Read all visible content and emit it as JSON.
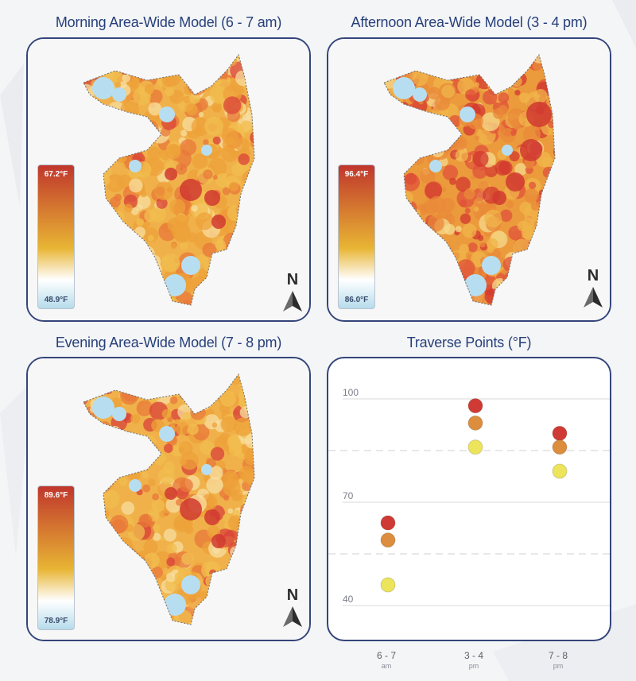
{
  "maps": [
    {
      "title": "Morning Area-Wide Model (6 - 7 am)",
      "legend_max": "67.2°F",
      "legend_min": "48.9°F",
      "north_label": "N",
      "north_icon": "north-arrow-icon",
      "palette": "warm"
    },
    {
      "title": "Afternoon Area-Wide Model (3 - 4 pm)",
      "legend_max": "96.4°F",
      "legend_min": "86.0°F",
      "north_label": "N",
      "north_icon": "north-arrow-icon",
      "palette": "hot"
    },
    {
      "title": "Evening Area-Wide Model (7 - 8 pm)",
      "legend_max": "89.6°F",
      "legend_min": "78.9°F",
      "north_label": "N",
      "north_icon": "north-arrow-icon",
      "palette": "warm"
    }
  ],
  "colors": {
    "panel_border": "#34457a",
    "title": "#27407a",
    "legend_top": "#c0362c",
    "legend_mid": "#e8b534",
    "legend_white": "#ffffff",
    "legend_bottom": "#b6dcec",
    "red_point": "#cf3b34",
    "orange_point": "#dd8d3e",
    "yellow_point": "#ece45a"
  },
  "chart_data": {
    "type": "scatter",
    "title": "Traverse Points (°F)",
    "categories": [
      {
        "label": "6 - 7",
        "sub": "am"
      },
      {
        "label": "3 - 4",
        "sub": "pm"
      },
      {
        "label": "7 - 8",
        "sub": "pm"
      }
    ],
    "yticks": [
      100,
      70,
      40
    ],
    "ylim": [
      37,
      103
    ],
    "dashed_lines": [
      85,
      55
    ],
    "series": [
      {
        "color": "#cf3b34",
        "values": [
          64,
          98,
          90
        ]
      },
      {
        "color": "#dd8d3e",
        "values": [
          59,
          93,
          86
        ]
      },
      {
        "color": "#ece45a",
        "values": [
          46,
          86,
          79
        ]
      }
    ],
    "grid": true
  }
}
